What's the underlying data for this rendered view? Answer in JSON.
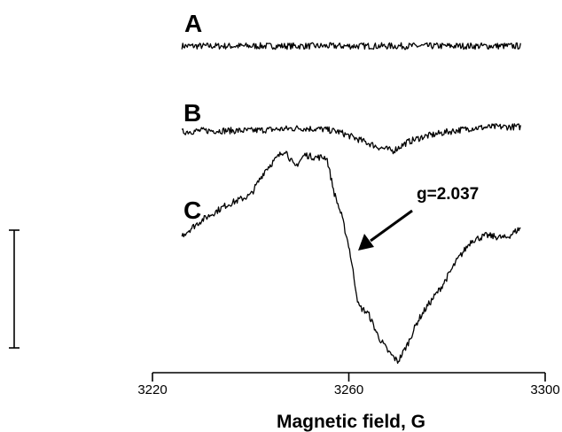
{
  "chart_data": {
    "type": "line",
    "title": "",
    "xlabel": "Magnetic field, G",
    "ylabel": "",
    "xlim": [
      3220,
      3300
    ],
    "x_ticks": [
      "3220",
      "3260",
      "3300"
    ],
    "grid": false,
    "series": [
      {
        "name": "A",
        "x": [
          3226,
          3230,
          3235,
          3240,
          3245,
          3250,
          3255,
          3260,
          3265,
          3270,
          3275,
          3280,
          3285,
          3290,
          3295
        ],
        "values": [
          0,
          0,
          0,
          0,
          0,
          0,
          0,
          0,
          0,
          0,
          0,
          0,
          0,
          0,
          0
        ]
      },
      {
        "name": "B",
        "x": [
          3226,
          3230,
          3235,
          3240,
          3245,
          3250,
          3255,
          3258,
          3262,
          3266,
          3269,
          3272,
          3275,
          3280,
          3285,
          3290,
          3295
        ],
        "values": [
          0,
          0.5,
          0.5,
          0.5,
          1.0,
          1.5,
          1.0,
          0,
          -3.0,
          -6.0,
          -7.5,
          -4.0,
          -2.0,
          0,
          1.5,
          2.0,
          2.0
        ]
      },
      {
        "name": "C",
        "x": [
          3226,
          3230,
          3235,
          3240,
          3243,
          3247,
          3249,
          3251,
          3253,
          3255.5,
          3257,
          3258.5,
          3260,
          3262,
          3264,
          3266,
          3268,
          3270,
          3272,
          3274,
          3276,
          3279,
          3282,
          3285,
          3288,
          3292,
          3295
        ],
        "values": [
          0,
          6,
          12,
          16,
          26,
          34,
          27,
          32,
          31,
          31,
          17,
          8,
          -4,
          -28,
          -31,
          -40,
          -46,
          -50,
          -43,
          -34,
          -28,
          -20,
          -10,
          -2,
          0,
          -1,
          3
        ]
      }
    ],
    "annotations": [
      "g=2.037"
    ]
  }
}
